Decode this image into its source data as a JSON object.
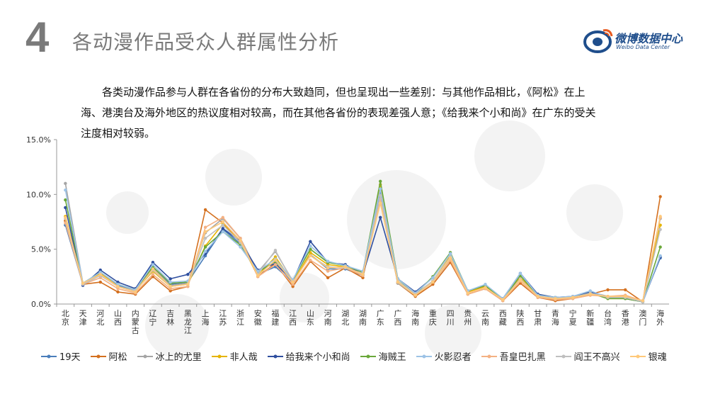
{
  "header": {
    "number": "4",
    "title": "各动漫作品受众人群属性分析"
  },
  "logo": {
    "cn": "微博数据中心",
    "en": "Weibo Data Center",
    "icon": "weibo-eye-icon"
  },
  "description": "各类动漫作品参与人群在各省份的分布大致趋同，但也呈现出一些差别：与其他作品相比，《阿松》在上海、港澳台及海外地区的热议度相对较高，而在其他各省份的表现差强人意；《给我来个小和尚》在广东的受关注度相对较弱。",
  "chart_data": {
    "type": "line",
    "categories": [
      "北京",
      "天津",
      "河北",
      "山西",
      "内蒙古",
      "辽宁",
      "吉林",
      "黑龙江",
      "上海",
      "江苏",
      "浙江",
      "安徽",
      "福建",
      "江西",
      "山东",
      "河南",
      "湖北",
      "湖南",
      "广东",
      "广西",
      "海南",
      "重庆",
      "四川",
      "贵州",
      "云南",
      "西藏",
      "陕西",
      "甘肃",
      "青海",
      "宁夏",
      "新疆",
      "台湾",
      "香港",
      "澳门",
      "海外"
    ],
    "ylim": [
      0,
      15
    ],
    "yticks": [
      "0.0%",
      "5.0%",
      "10.0%",
      "15.0%"
    ],
    "series": [
      {
        "name": "19天",
        "color": "#4a7ebb",
        "values": [
          7.2,
          1.8,
          2.8,
          1.7,
          1.2,
          3.4,
          1.8,
          2.0,
          4.4,
          6.8,
          5.5,
          2.7,
          3.4,
          2.0,
          4.5,
          3.2,
          3.2,
          2.6,
          10.1,
          2.0,
          0.8,
          2.0,
          4.0,
          1.0,
          1.6,
          0.5,
          2.3,
          0.7,
          0.5,
          0.6,
          0.9,
          0.6,
          0.6,
          0.3,
          4.2
        ]
      },
      {
        "name": "阿松",
        "color": "#d4701f",
        "values": [
          7.6,
          1.8,
          2.0,
          1.1,
          0.9,
          2.5,
          1.2,
          1.6,
          8.6,
          7.4,
          5.8,
          2.5,
          3.7,
          1.6,
          3.9,
          2.4,
          3.3,
          2.4,
          9.6,
          1.9,
          0.7,
          1.8,
          3.8,
          0.9,
          1.4,
          0.3,
          1.9,
          0.6,
          0.3,
          0.5,
          0.9,
          1.3,
          1.3,
          0.2,
          9.8
        ]
      },
      {
        "name": "冰上的尤里",
        "color": "#a5a5a5",
        "values": [
          11.0,
          1.9,
          2.9,
          1.6,
          1.1,
          3.3,
          1.7,
          1.9,
          6.5,
          7.8,
          6.0,
          2.9,
          4.8,
          2.1,
          4.5,
          3.3,
          3.4,
          2.7,
          9.3,
          1.9,
          0.8,
          2.0,
          4.2,
          1.0,
          1.6,
          0.4,
          2.4,
          0.8,
          0.5,
          0.6,
          1.1,
          0.7,
          0.7,
          0.3,
          7.8
        ]
      },
      {
        "name": "非人哉",
        "color": "#e6b400",
        "values": [
          8.0,
          1.9,
          2.8,
          1.6,
          1.2,
          3.0,
          1.6,
          1.8,
          5.3,
          7.3,
          5.6,
          2.6,
          4.3,
          2.0,
          4.7,
          3.6,
          3.4,
          2.9,
          10.9,
          2.3,
          0.9,
          2.1,
          4.4,
          1.1,
          1.6,
          0.4,
          2.4,
          0.8,
          0.5,
          0.6,
          1.0,
          0.5,
          0.5,
          0.2,
          7.2
        ]
      },
      {
        "name": "给我来个小和尚",
        "color": "#2f4f9f",
        "values": [
          8.8,
          1.7,
          3.1,
          2.0,
          1.4,
          3.8,
          2.3,
          2.7,
          4.6,
          6.9,
          5.7,
          3.1,
          3.7,
          2.1,
          5.7,
          3.8,
          3.6,
          2.7,
          7.9,
          2.3,
          1.1,
          2.4,
          4.6,
          1.2,
          1.7,
          0.5,
          2.8,
          0.9,
          0.6,
          0.7,
          1.1,
          0.6,
          0.5,
          0.2,
          4.3
        ]
      },
      {
        "name": "海贼王",
        "color": "#6aa83a",
        "values": [
          9.5,
          1.9,
          2.9,
          1.8,
          1.3,
          3.4,
          1.9,
          2.0,
          5.2,
          6.6,
          5.4,
          2.9,
          3.9,
          2.2,
          5.0,
          3.8,
          3.5,
          2.9,
          11.2,
          2.3,
          0.9,
          2.5,
          4.7,
          1.2,
          1.7,
          0.4,
          2.6,
          0.8,
          0.6,
          0.6,
          1.0,
          0.5,
          0.5,
          0.2,
          5.2
        ]
      },
      {
        "name": "火影忍者",
        "color": "#9dc3e6",
        "values": [
          10.4,
          1.9,
          2.9,
          1.8,
          1.3,
          3.6,
          2.0,
          2.1,
          4.8,
          6.6,
          5.2,
          3.0,
          4.1,
          2.2,
          5.3,
          3.9,
          3.5,
          3.0,
          10.5,
          2.3,
          1.0,
          2.4,
          4.6,
          1.2,
          1.8,
          0.5,
          2.8,
          0.8,
          0.6,
          0.7,
          1.2,
          0.6,
          0.6,
          0.2,
          4.4
        ]
      },
      {
        "name": "吾皇巴扎黑",
        "color": "#f4b183",
        "values": [
          7.4,
          1.8,
          2.4,
          1.4,
          1.0,
          2.7,
          1.4,
          1.6,
          7.0,
          7.9,
          6.0,
          2.5,
          3.6,
          1.8,
          4.0,
          3.0,
          3.3,
          2.6,
          9.6,
          2.0,
          0.8,
          2.0,
          4.0,
          0.9,
          1.4,
          0.3,
          2.1,
          0.6,
          0.4,
          0.5,
          0.8,
          0.7,
          0.8,
          0.3,
          7.9
        ]
      },
      {
        "name": "阎王不高兴",
        "color": "#bfbfbf",
        "values": [
          7.8,
          1.8,
          2.6,
          1.6,
          1.2,
          3.1,
          1.6,
          1.8,
          6.0,
          7.2,
          5.6,
          2.7,
          4.9,
          2.0,
          4.4,
          3.4,
          3.3,
          2.8,
          9.9,
          2.1,
          0.9,
          2.1,
          4.3,
          1.0,
          1.5,
          0.4,
          2.3,
          0.7,
          0.5,
          0.6,
          1.0,
          0.6,
          0.6,
          0.2,
          6.8
        ]
      },
      {
        "name": "银魂",
        "color": "#ffc97a",
        "values": [
          7.9,
          1.9,
          2.7,
          1.6,
          1.1,
          3.2,
          1.6,
          1.8,
          6.6,
          7.5,
          5.8,
          2.6,
          4.0,
          2.0,
          4.4,
          3.3,
          3.4,
          2.7,
          9.2,
          2.0,
          0.8,
          2.0,
          4.2,
          1.0,
          1.5,
          0.4,
          2.2,
          0.7,
          0.5,
          0.6,
          0.9,
          0.7,
          0.7,
          0.3,
          8.0
        ]
      }
    ]
  }
}
